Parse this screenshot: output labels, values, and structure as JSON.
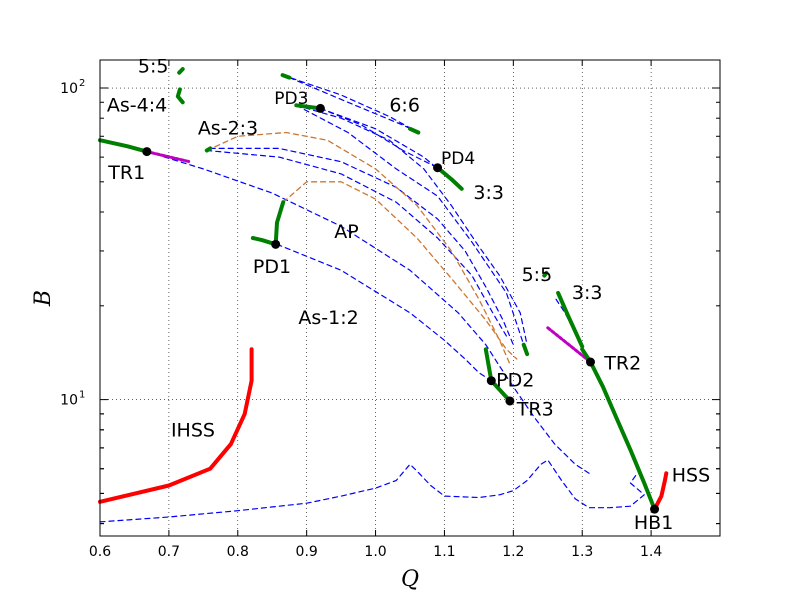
{
  "chart_data": {
    "type": "line",
    "xlabel": "Q",
    "ylabel": "B",
    "xlim": [
      0.6,
      1.5
    ],
    "ylim": [
      3.65,
      123
    ],
    "yscale": "log",
    "grid": true,
    "x_ticks": [
      "0.6",
      "0.7",
      "0.8",
      "0.9",
      "1.0",
      "1.1",
      "1.2",
      "1.3",
      "1.4"
    ],
    "y_ticks": [
      {
        "base": "10",
        "exp": "1",
        "value": 10
      },
      {
        "base": "10",
        "exp": "2",
        "value": 100
      }
    ],
    "colors": {
      "stable_steady": "#ff0000",
      "stable_periodic": "#008000",
      "unstable": "#0000ff",
      "secondary": "#cc7733",
      "torus": "#bf00bf"
    },
    "curves": [
      {
        "style": "red",
        "points": [
          [
            0.6,
            4.7
          ],
          [
            0.7,
            5.3
          ],
          [
            0.76,
            6.0
          ],
          [
            0.79,
            7.2
          ],
          [
            0.81,
            9.0
          ],
          [
            0.82,
            11.5
          ],
          [
            0.82,
            14.5
          ]
        ]
      },
      {
        "style": "red",
        "points": [
          [
            1.405,
            4.45
          ],
          [
            1.415,
            4.9
          ],
          [
            1.42,
            5.5
          ],
          [
            1.422,
            5.8
          ]
        ]
      },
      {
        "style": "green",
        "points": [
          [
            1.312,
            13.2
          ],
          [
            1.33,
            11.0
          ],
          [
            1.35,
            8.7
          ],
          [
            1.37,
            6.9
          ],
          [
            1.39,
            5.4
          ],
          [
            1.405,
            4.45
          ]
        ]
      },
      {
        "style": "green",
        "points": [
          [
            1.312,
            13.2
          ],
          [
            1.3,
            14.5
          ]
        ]
      },
      {
        "style": "green",
        "points": [
          [
            1.265,
            22.0
          ],
          [
            1.28,
            18.5
          ],
          [
            1.3,
            14.8
          ]
        ]
      },
      {
        "style": "green",
        "points": [
          [
            0.6,
            68.0
          ],
          [
            0.64,
            65.0
          ],
          [
            0.668,
            62.5
          ]
        ]
      },
      {
        "style": "green",
        "points": [
          [
            0.822,
            33.0
          ],
          [
            0.835,
            32.5
          ],
          [
            0.855,
            31.5
          ]
        ]
      },
      {
        "style": "green",
        "points": [
          [
            0.855,
            31.5
          ],
          [
            0.857,
            37.0
          ],
          [
            0.866,
            43.0
          ]
        ]
      },
      {
        "style": "green",
        "points": [
          [
            1.16,
            14.5
          ],
          [
            1.168,
            11.5
          ],
          [
            1.195,
            9.9
          ]
        ]
      },
      {
        "style": "green",
        "points": [
          [
            1.09,
            55.5
          ],
          [
            1.11,
            51.0
          ],
          [
            1.125,
            47.5
          ]
        ]
      },
      {
        "style": "green",
        "points": [
          [
            0.885,
            88.0
          ],
          [
            0.92,
            86.0
          ]
        ]
      },
      {
        "style": "green",
        "points": [
          [
            0.865,
            110.0
          ],
          [
            0.875,
            108.0
          ]
        ]
      },
      {
        "style": "green",
        "points": [
          [
            1.05,
            74.0
          ],
          [
            1.062,
            72.0
          ]
        ]
      },
      {
        "style": "green",
        "points": [
          [
            0.715,
            112.0
          ],
          [
            0.72,
            115.0
          ]
        ]
      },
      {
        "style": "green",
        "points": [
          [
            0.72,
            90.0
          ],
          [
            0.713,
            94.0
          ],
          [
            0.716,
            99.0
          ]
        ]
      },
      {
        "style": "green",
        "points": [
          [
            1.215,
            15.0
          ],
          [
            1.22,
            14.0
          ]
        ]
      },
      {
        "style": "green",
        "points": [
          [
            1.245,
            25.0
          ],
          [
            1.248,
            25.5
          ]
        ]
      },
      {
        "style": "green",
        "points": [
          [
            0.755,
            63.0
          ],
          [
            0.76,
            64.0
          ]
        ]
      },
      {
        "style": "torus",
        "points": [
          [
            0.668,
            62.5
          ],
          [
            0.73,
            58.0
          ]
        ]
      },
      {
        "style": "torus",
        "points": [
          [
            1.25,
            17.0
          ],
          [
            1.312,
            13.2
          ]
        ]
      },
      {
        "style": "blue",
        "points": [
          [
            0.6,
            4.05
          ],
          [
            0.7,
            4.2
          ],
          [
            0.8,
            4.4
          ],
          [
            0.9,
            4.65
          ],
          [
            0.95,
            4.9
          ],
          [
            1.0,
            5.2
          ],
          [
            1.03,
            5.5
          ],
          [
            1.05,
            6.2
          ],
          [
            1.06,
            5.9
          ],
          [
            1.08,
            5.3
          ],
          [
            1.1,
            4.9
          ],
          [
            1.15,
            4.85
          ],
          [
            1.18,
            4.95
          ],
          [
            1.2,
            5.1
          ],
          [
            1.22,
            5.5
          ],
          [
            1.24,
            6.2
          ],
          [
            1.25,
            6.4
          ],
          [
            1.27,
            5.5
          ],
          [
            1.29,
            4.8
          ],
          [
            1.31,
            4.5
          ],
          [
            1.34,
            4.5
          ],
          [
            1.37,
            4.55
          ],
          [
            1.39,
            4.95
          ],
          [
            1.37,
            5.4
          ],
          [
            1.38,
            5.8
          ]
        ]
      },
      {
        "style": "blue",
        "points": [
          [
            0.668,
            62.5
          ],
          [
            0.75,
            55.0
          ],
          [
            0.85,
            46.0
          ],
          [
            0.95,
            36.0
          ],
          [
            1.05,
            26.0
          ],
          [
            1.12,
            19.0
          ],
          [
            1.16,
            15.0
          ],
          [
            1.18,
            12.8
          ],
          [
            1.2,
            11.0
          ],
          [
            1.23,
            8.8
          ],
          [
            1.26,
            7.2
          ],
          [
            1.29,
            6.2
          ],
          [
            1.31,
            5.8
          ]
        ]
      },
      {
        "style": "blue",
        "points": [
          [
            0.857,
            31.5
          ],
          [
            0.95,
            26.0
          ],
          [
            1.05,
            19.0
          ],
          [
            1.1,
            15.5
          ],
          [
            1.13,
            13.5
          ],
          [
            1.15,
            12.2
          ],
          [
            1.168,
            11.5
          ]
        ]
      },
      {
        "style": "blue",
        "points": [
          [
            0.76,
            64.0
          ],
          [
            0.86,
            64.0
          ],
          [
            0.95,
            58.0
          ],
          [
            1.03,
            48.0
          ],
          [
            1.09,
            38.0
          ],
          [
            1.13,
            30.0
          ],
          [
            1.16,
            23.0
          ],
          [
            1.185,
            18.0
          ],
          [
            1.2,
            15.0
          ]
        ]
      },
      {
        "style": "blue",
        "points": [
          [
            0.755,
            63.0
          ],
          [
            0.86,
            60.0
          ],
          [
            0.95,
            53.0
          ],
          [
            1.03,
            43.0
          ],
          [
            1.09,
            33.0
          ],
          [
            1.14,
            25.0
          ],
          [
            1.17,
            19.0
          ],
          [
            1.19,
            16.0
          ]
        ]
      },
      {
        "style": "blue",
        "points": [
          [
            0.885,
            88.0
          ],
          [
            0.95,
            80.0
          ],
          [
            1.02,
            68.0
          ],
          [
            1.07,
            55.0
          ],
          [
            1.11,
            42.0
          ],
          [
            1.15,
            31.0
          ],
          [
            1.18,
            25.0
          ],
          [
            1.21,
            19.0
          ],
          [
            1.22,
            15.0
          ]
        ]
      },
      {
        "style": "blue",
        "points": [
          [
            0.92,
            86.0
          ],
          [
            0.98,
            76.0
          ],
          [
            1.04,
            63.0
          ],
          [
            1.09,
            55.5
          ]
        ]
      },
      {
        "style": "blue",
        "points": [
          [
            0.885,
            88.0
          ],
          [
            0.96,
            72.0
          ],
          [
            1.03,
            55.0
          ],
          [
            1.09,
            45.0
          ],
          [
            1.14,
            32.0
          ],
          [
            1.19,
            22.0
          ],
          [
            1.215,
            15.0
          ]
        ]
      },
      {
        "style": "blue",
        "points": [
          [
            0.865,
            110.0
          ],
          [
            0.95,
            95.0
          ],
          [
            1.02,
            81.0
          ],
          [
            1.062,
            72.0
          ]
        ]
      },
      {
        "style": "blue",
        "points": [
          [
            0.875,
            108.0
          ],
          [
            0.96,
            90.0
          ],
          [
            1.04,
            76.0
          ],
          [
            1.062,
            72.0
          ]
        ]
      },
      {
        "style": "blue",
        "points": [
          [
            0.92,
            86.0
          ],
          [
            1.0,
            74.0
          ],
          [
            1.07,
            60.0
          ],
          [
            1.125,
            47.5
          ]
        ]
      },
      {
        "style": "blue",
        "points": [
          [
            1.262,
            21.0
          ],
          [
            1.275,
            19.0
          ],
          [
            1.3,
            14.8
          ]
        ]
      },
      {
        "style": "secondary",
        "points": [
          [
            0.755,
            63.0
          ],
          [
            0.8,
            70.0
          ],
          [
            0.87,
            72.0
          ],
          [
            0.93,
            68.0
          ],
          [
            1.0,
            55.0
          ],
          [
            1.06,
            42.0
          ],
          [
            1.11,
            30.0
          ],
          [
            1.15,
            21.0
          ],
          [
            1.18,
            15.5
          ],
          [
            1.195,
            13.0
          ]
        ]
      },
      {
        "style": "secondary",
        "points": [
          [
            0.866,
            43.0
          ],
          [
            0.9,
            50.0
          ],
          [
            0.95,
            50.0
          ],
          [
            1.0,
            44.0
          ],
          [
            1.06,
            33.0
          ],
          [
            1.11,
            24.5
          ],
          [
            1.16,
            18.0
          ],
          [
            1.19,
            14.5
          ],
          [
            1.205,
            13.5
          ]
        ]
      }
    ],
    "points": [
      {
        "label": "TR1",
        "x": 0.668,
        "y": 62.5
      },
      {
        "label": "PD1",
        "x": 0.855,
        "y": 31.5
      },
      {
        "label": "PD3",
        "x": 0.92,
        "y": 86.0
      },
      {
        "label": "PD4",
        "x": 1.09,
        "y": 55.5
      },
      {
        "label": "PD2",
        "x": 1.168,
        "y": 11.5
      },
      {
        "label": "TR3",
        "x": 1.195,
        "y": 9.9
      },
      {
        "label": "TR2",
        "x": 1.312,
        "y": 13.2
      },
      {
        "label": "HB1",
        "x": 1.405,
        "y": 4.45
      }
    ],
    "annotations": [
      {
        "text": "5:5",
        "x": 0.655,
        "y": 112.0,
        "size": "large"
      },
      {
        "text": "As-4:4",
        "x": 0.61,
        "y": 84.0,
        "size": "large"
      },
      {
        "text": "As-2:3",
        "x": 0.742,
        "y": 71.0,
        "size": "large"
      },
      {
        "text": "TR1",
        "x": 0.612,
        "y": 51.0,
        "size": "large"
      },
      {
        "text": "PD3",
        "x": 0.853,
        "y": 89.0,
        "size": "small"
      },
      {
        "text": "6:6",
        "x": 1.02,
        "y": 84.0,
        "size": "large"
      },
      {
        "text": "PD4",
        "x": 1.095,
        "y": 57.0,
        "size": "small"
      },
      {
        "text": "3:3",
        "x": 1.142,
        "y": 44.0,
        "size": "large"
      },
      {
        "text": "AP",
        "x": 0.94,
        "y": 33.0,
        "size": "large"
      },
      {
        "text": "PD1",
        "x": 0.822,
        "y": 25.5,
        "size": "large"
      },
      {
        "text": "5:5",
        "x": 1.212,
        "y": 24.0,
        "size": "large"
      },
      {
        "text": "3:3",
        "x": 1.285,
        "y": 21.0,
        "size": "large"
      },
      {
        "text": "As-1:2",
        "x": 0.888,
        "y": 17.5,
        "size": "large"
      },
      {
        "text": "PD2",
        "x": 1.175,
        "y": 11.0,
        "size": "large"
      },
      {
        "text": "TR2",
        "x": 1.332,
        "y": 12.5,
        "size": "large"
      },
      {
        "text": "TR3",
        "x": 1.205,
        "y": 8.9,
        "size": "large"
      },
      {
        "text": "IHSS",
        "x": 0.703,
        "y": 7.6,
        "size": "large"
      },
      {
        "text": "HSS",
        "x": 1.43,
        "y": 5.45,
        "size": "large"
      },
      {
        "text": "HB1",
        "x": 1.375,
        "y": 3.85,
        "size": "large"
      }
    ]
  }
}
